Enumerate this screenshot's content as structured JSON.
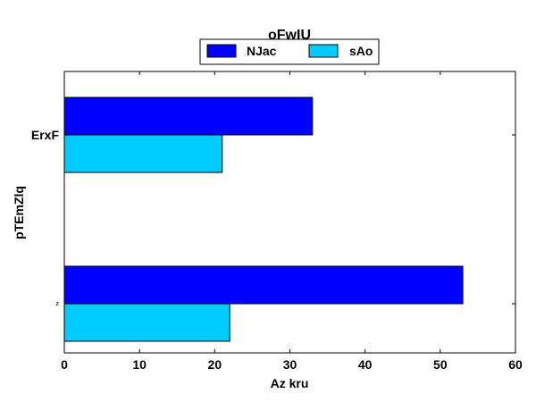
{
  "chart_data": {
    "type": "bar",
    "orientation": "horizontal",
    "title": "oFwIU",
    "xlabel": "Az kru",
    "ylabel": "pTEmZlq",
    "categories": [
      "z",
      "ErxF"
    ],
    "series": [
      {
        "name": "NJac",
        "color": "#0000ff",
        "values": [
          53,
          33
        ]
      },
      {
        "name": "sAo",
        "color": "#00ccff",
        "values": [
          22,
          21
        ]
      }
    ],
    "xlim": [
      0,
      60
    ],
    "xticks": [
      0,
      10,
      20,
      30,
      40,
      50,
      60
    ],
    "grid": false,
    "legend_position": "top-center"
  }
}
